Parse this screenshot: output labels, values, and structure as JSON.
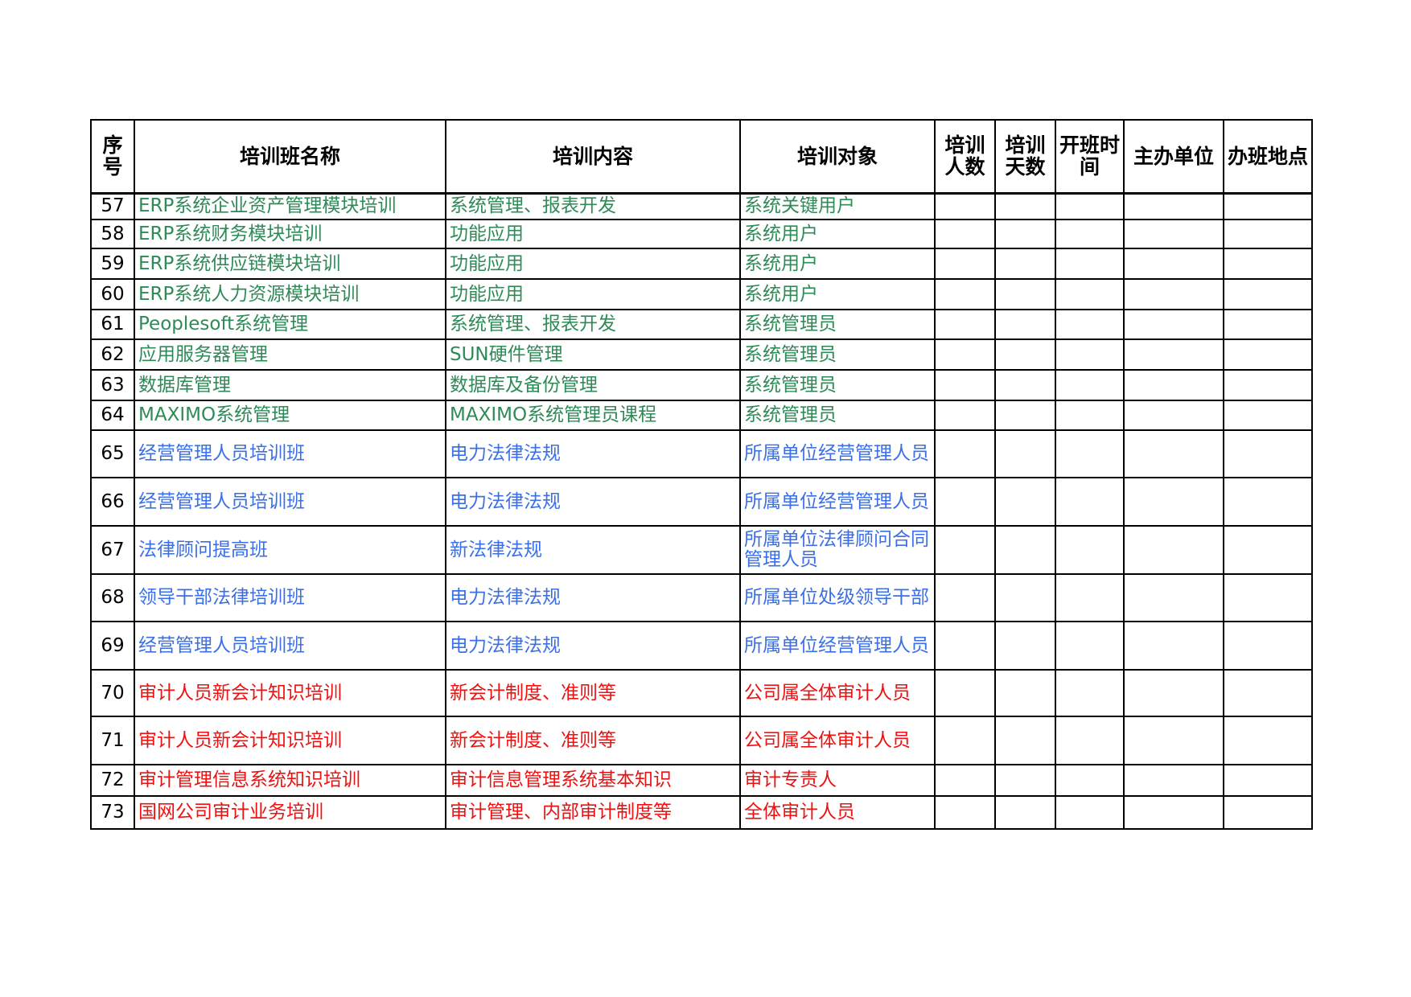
{
  "table": {
    "headers": [
      "序号",
      "培训班名称",
      "培训内容",
      "培训对象",
      "培训人数",
      "培训天数",
      "开班时间",
      "主办单位",
      "办班地点"
    ],
    "rows": [
      {
        "no": 57,
        "name": "ERP系统企业资产管理模块培训",
        "content": "系统管理、报表开发",
        "target": "系统关键用户",
        "color": "#2e8b57"
      },
      {
        "no": 58,
        "name": "ERP系统财务模块培训",
        "content": "功能应用",
        "target": "系统用户",
        "color": "#2e8b57"
      },
      {
        "no": 59,
        "name": "ERP系统供应链模块培训",
        "content": "功能应用",
        "target": "系统用户",
        "color": "#2e8b57"
      },
      {
        "no": 60,
        "name": "ERP系统人力资源模块培训",
        "content": "功能应用",
        "target": "系统用户",
        "color": "#2e8b57"
      },
      {
        "no": 61,
        "name": "Peoplesoft系统管理",
        "content": "系统管理、报表开发",
        "target": "系统管理员",
        "color": "#2e8b57"
      },
      {
        "no": 62,
        "name": "应用服务器管理",
        "content": "SUN硬件管理",
        "target": "系统管理员",
        "color": "#2e8b57"
      },
      {
        "no": 63,
        "name": "数据库管理",
        "content": "数据库及备份管理",
        "target": "系统管理员",
        "color": "#2e8b57"
      },
      {
        "no": 64,
        "name": "MAXIMO系统管理",
        "content": "MAXIMO系统管理员课程",
        "target": "系统管理员",
        "color": "#2e8b57"
      },
      {
        "no": 65,
        "name": "经营管理人员培训班",
        "content": "电力法律法规",
        "target": "所属单位经营管理人员",
        "color": "#3b6fe8"
      },
      {
        "no": 66,
        "name": "经营管理人员培训班",
        "content": "电力法律法规",
        "target": "所属单位经营管理人员",
        "color": "#3b6fe8"
      },
      {
        "no": 67,
        "name": "法律顾问提高班",
        "content": "新法律法规",
        "target": "所属单位法律顾问合同管理人员",
        "color": "#3b6fe8"
      },
      {
        "no": 68,
        "name": "领导干部法律培训班",
        "content": "电力法律法规",
        "target": "所属单位处级领导干部",
        "color": "#3b6fe8"
      },
      {
        "no": 69,
        "name": "经营管理人员培训班",
        "content": "电力法律法规",
        "target": "所属单位经营管理人员",
        "color": "#3b6fe8"
      },
      {
        "no": 70,
        "name": "审计人员新会计知识培训",
        "content": "新会计制度、准则等",
        "target": "公司属全体审计人员",
        "color": "#ee1111"
      },
      {
        "no": 71,
        "name": "审计人员新会计知识培训",
        "content": "新会计制度、准则等",
        "target": "公司属全体审计人员",
        "color": "#ee1111"
      },
      {
        "no": 72,
        "name": "审计管理信息系统知识培训",
        "content": "审计信息管理系统基本知识",
        "target": "审计专责人",
        "color": "#ee1111"
      },
      {
        "no": 73,
        "name": "国网公司审计业务培训",
        "content": "审计管理、内部审计制度等",
        "target": "全体审计人员",
        "color": "#ee1111"
      }
    ]
  }
}
